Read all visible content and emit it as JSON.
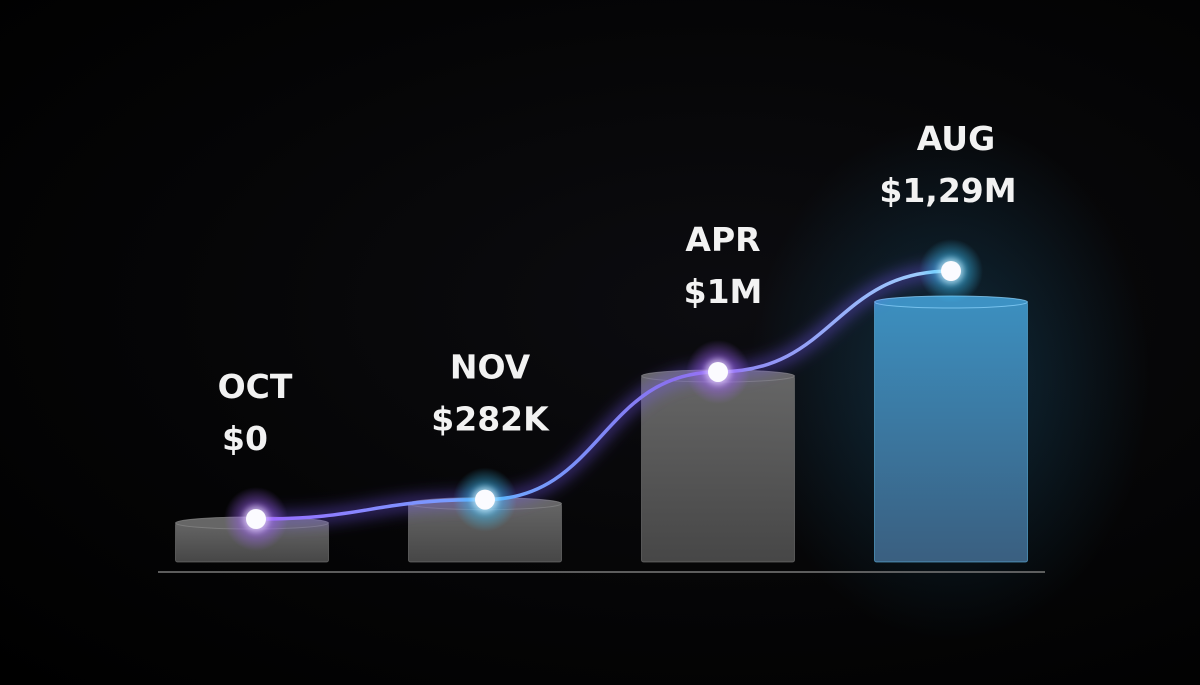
{
  "chart_data": {
    "type": "bar",
    "title": "",
    "xlabel": "",
    "ylabel": "",
    "categories": [
      "OCT",
      "NOV",
      "APR",
      "AUG"
    ],
    "values": [
      0,
      282000,
      1000000,
      1290000
    ],
    "value_labels": [
      "$0",
      "$282K",
      "$1M",
      "$1,29M"
    ],
    "overlay_line": true,
    "grid": false,
    "colors": {
      "bar": "#5a5a5a",
      "bar_highlight": "#3b7ea6",
      "line": "#8a6cf0",
      "glow_purple": "#9b5cff",
      "glow_cyan": "#3ec8ff",
      "point": "#ffffff",
      "axis": "#777777"
    }
  }
}
